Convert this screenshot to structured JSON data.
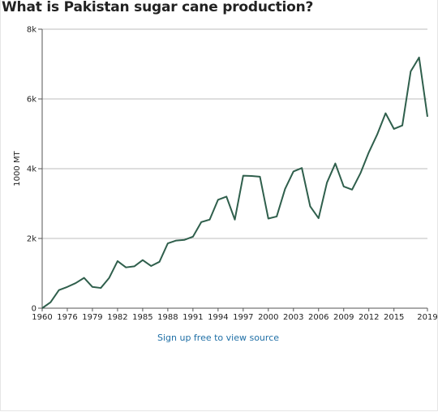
{
  "title": "What is Pakistan sugar cane production?",
  "source_link": "Sign up free to view source",
  "colors": {
    "line": "#2f5f4c",
    "grid": "#bdbdbd",
    "axis": "#555555",
    "link": "#1f6fa6"
  },
  "chart_data": {
    "type": "line",
    "title": "What is Pakistan sugar cane production?",
    "xlabel": "",
    "ylabel": "1000 MT",
    "ylim": [
      0,
      8000
    ],
    "y_ticks": [
      0,
      2000,
      4000,
      6000,
      8000
    ],
    "y_tick_labels": [
      "0",
      "2k",
      "4k",
      "6k",
      "8k"
    ],
    "x_tick_labels": [
      "1960",
      "1976",
      "1979",
      "1982",
      "1985",
      "1988",
      "1991",
      "1994",
      "1997",
      "2000",
      "2003",
      "2006",
      "2009",
      "2012",
      "2015",
      "2019"
    ],
    "grid": true,
    "legend": "none",
    "series": [
      {
        "x": [
          "1960",
          "1961",
          "1975",
          "1976",
          "1977",
          "1978",
          "1979",
          "1980",
          "1981",
          "1982",
          "1983",
          "1984",
          "1985",
          "1986",
          "1987",
          "1988",
          "1989",
          "1990",
          "1991",
          "1992",
          "1993",
          "1994",
          "1995",
          "1996",
          "1997",
          "1998",
          "1999",
          "2000",
          "2001",
          "2002",
          "2003",
          "2004",
          "2005",
          "2006",
          "2007",
          "2008",
          "2009",
          "2010",
          "2011",
          "2012",
          "2013",
          "2014",
          "2015",
          "2016",
          "2017",
          "2018",
          "2019"
        ],
        "values": [
          0,
          170,
          520,
          610,
          720,
          870,
          610,
          580,
          870,
          1350,
          1170,
          1200,
          1380,
          1210,
          1330,
          1860,
          1940,
          1960,
          2050,
          2470,
          2540,
          3110,
          3200,
          2540,
          3800,
          3790,
          3770,
          2570,
          2630,
          3420,
          3920,
          4020,
          2920,
          2580,
          3600,
          4150,
          3490,
          3400,
          3870,
          4470,
          4980,
          5590,
          5140,
          5240,
          6790,
          7190,
          5490
        ]
      }
    ]
  }
}
